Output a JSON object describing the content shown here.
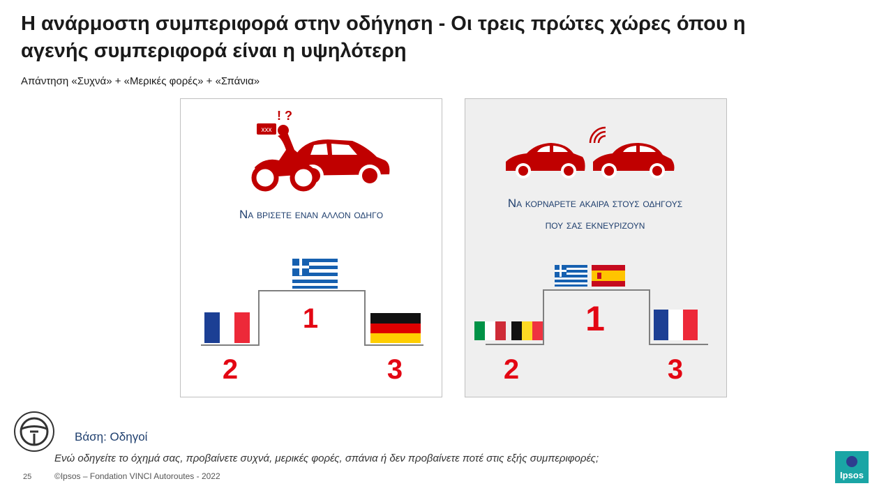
{
  "header": {
    "title_lines": [
      "Η ανάρμοστη συμπεριφορά στην οδήγηση - Οι τρεις πρώτες χώρες όπου η",
      "αγενής συμπεριφορά είναι η υψηλότερη"
    ],
    "subtitle": "Απάντηση «Συχνά» + «Μερικές φορές» + «Σπάνια»"
  },
  "panels": [
    {
      "label_lines": [
        "Να βρίσετε έναν άλλον οδηγό"
      ],
      "ranks": [
        "1",
        "2",
        "3"
      ]
    },
    {
      "label_lines": [
        "Να κορνάρετε άκαιρα στους οδηγούς",
        "που σας εκνευρίζουν"
      ],
      "ranks": [
        "1",
        "2",
        "3"
      ]
    }
  ],
  "footer": {
    "base": "Βάση: Οδηγοί",
    "question": "Ενώ οδηγείτε το όχημά σας, προβαίνετε συχνά, μερικές φορές, σπάνια ή δεν προβαίνετε ποτέ στις εξής συμπεριφορές;",
    "page": "25",
    "copyright": "©Ipsos – Fondation VINCI Autoroutes - 2022",
    "logo": "Ipsos"
  }
}
